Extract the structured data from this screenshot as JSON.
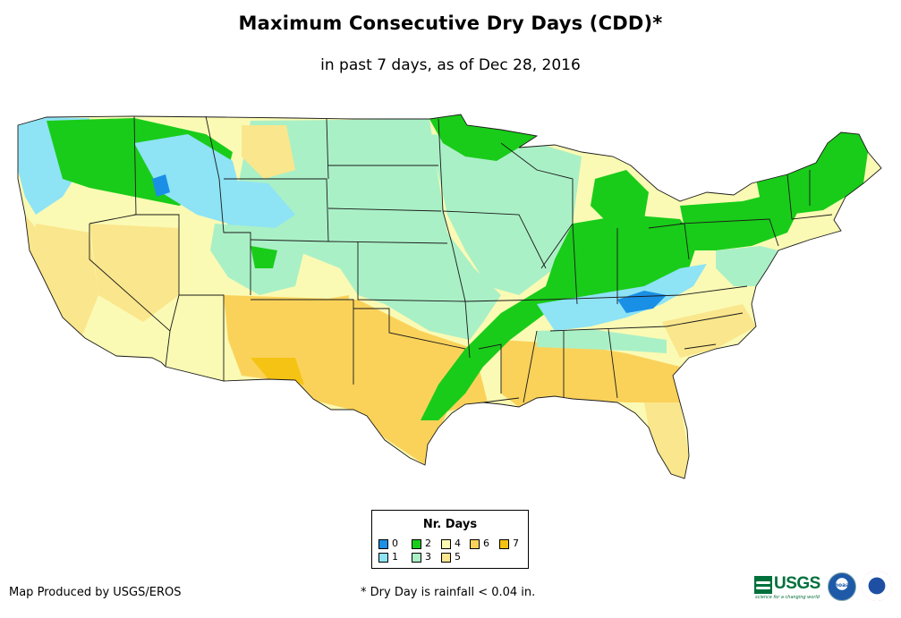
{
  "title": "Maximum Consecutive Dry Days (CDD)*",
  "subtitle": "in past 7 days, as of Dec 28, 2016",
  "legend": {
    "title": "Nr. Days",
    "items": [
      {
        "label": "0",
        "color": "#1a8fe6"
      },
      {
        "label": "1",
        "color": "#8ee3f5"
      },
      {
        "label": "2",
        "color": "#19cc19"
      },
      {
        "label": "3",
        "color": "#aaf0c6"
      },
      {
        "label": "4",
        "color": "#fafab4"
      },
      {
        "label": "5",
        "color": "#fae68c"
      },
      {
        "label": "6",
        "color": "#fad25a"
      },
      {
        "label": "7",
        "color": "#f5c314"
      }
    ]
  },
  "credit": "Map Produced by USGS/EROS",
  "footnote": "* Dry Day is rainfall < 0.04 in.",
  "logos": {
    "usgs": "USGS",
    "usgs_tagline": "science for a changing world",
    "noaa": "noaa",
    "nws_icon": "nws-emblem-icon"
  }
}
